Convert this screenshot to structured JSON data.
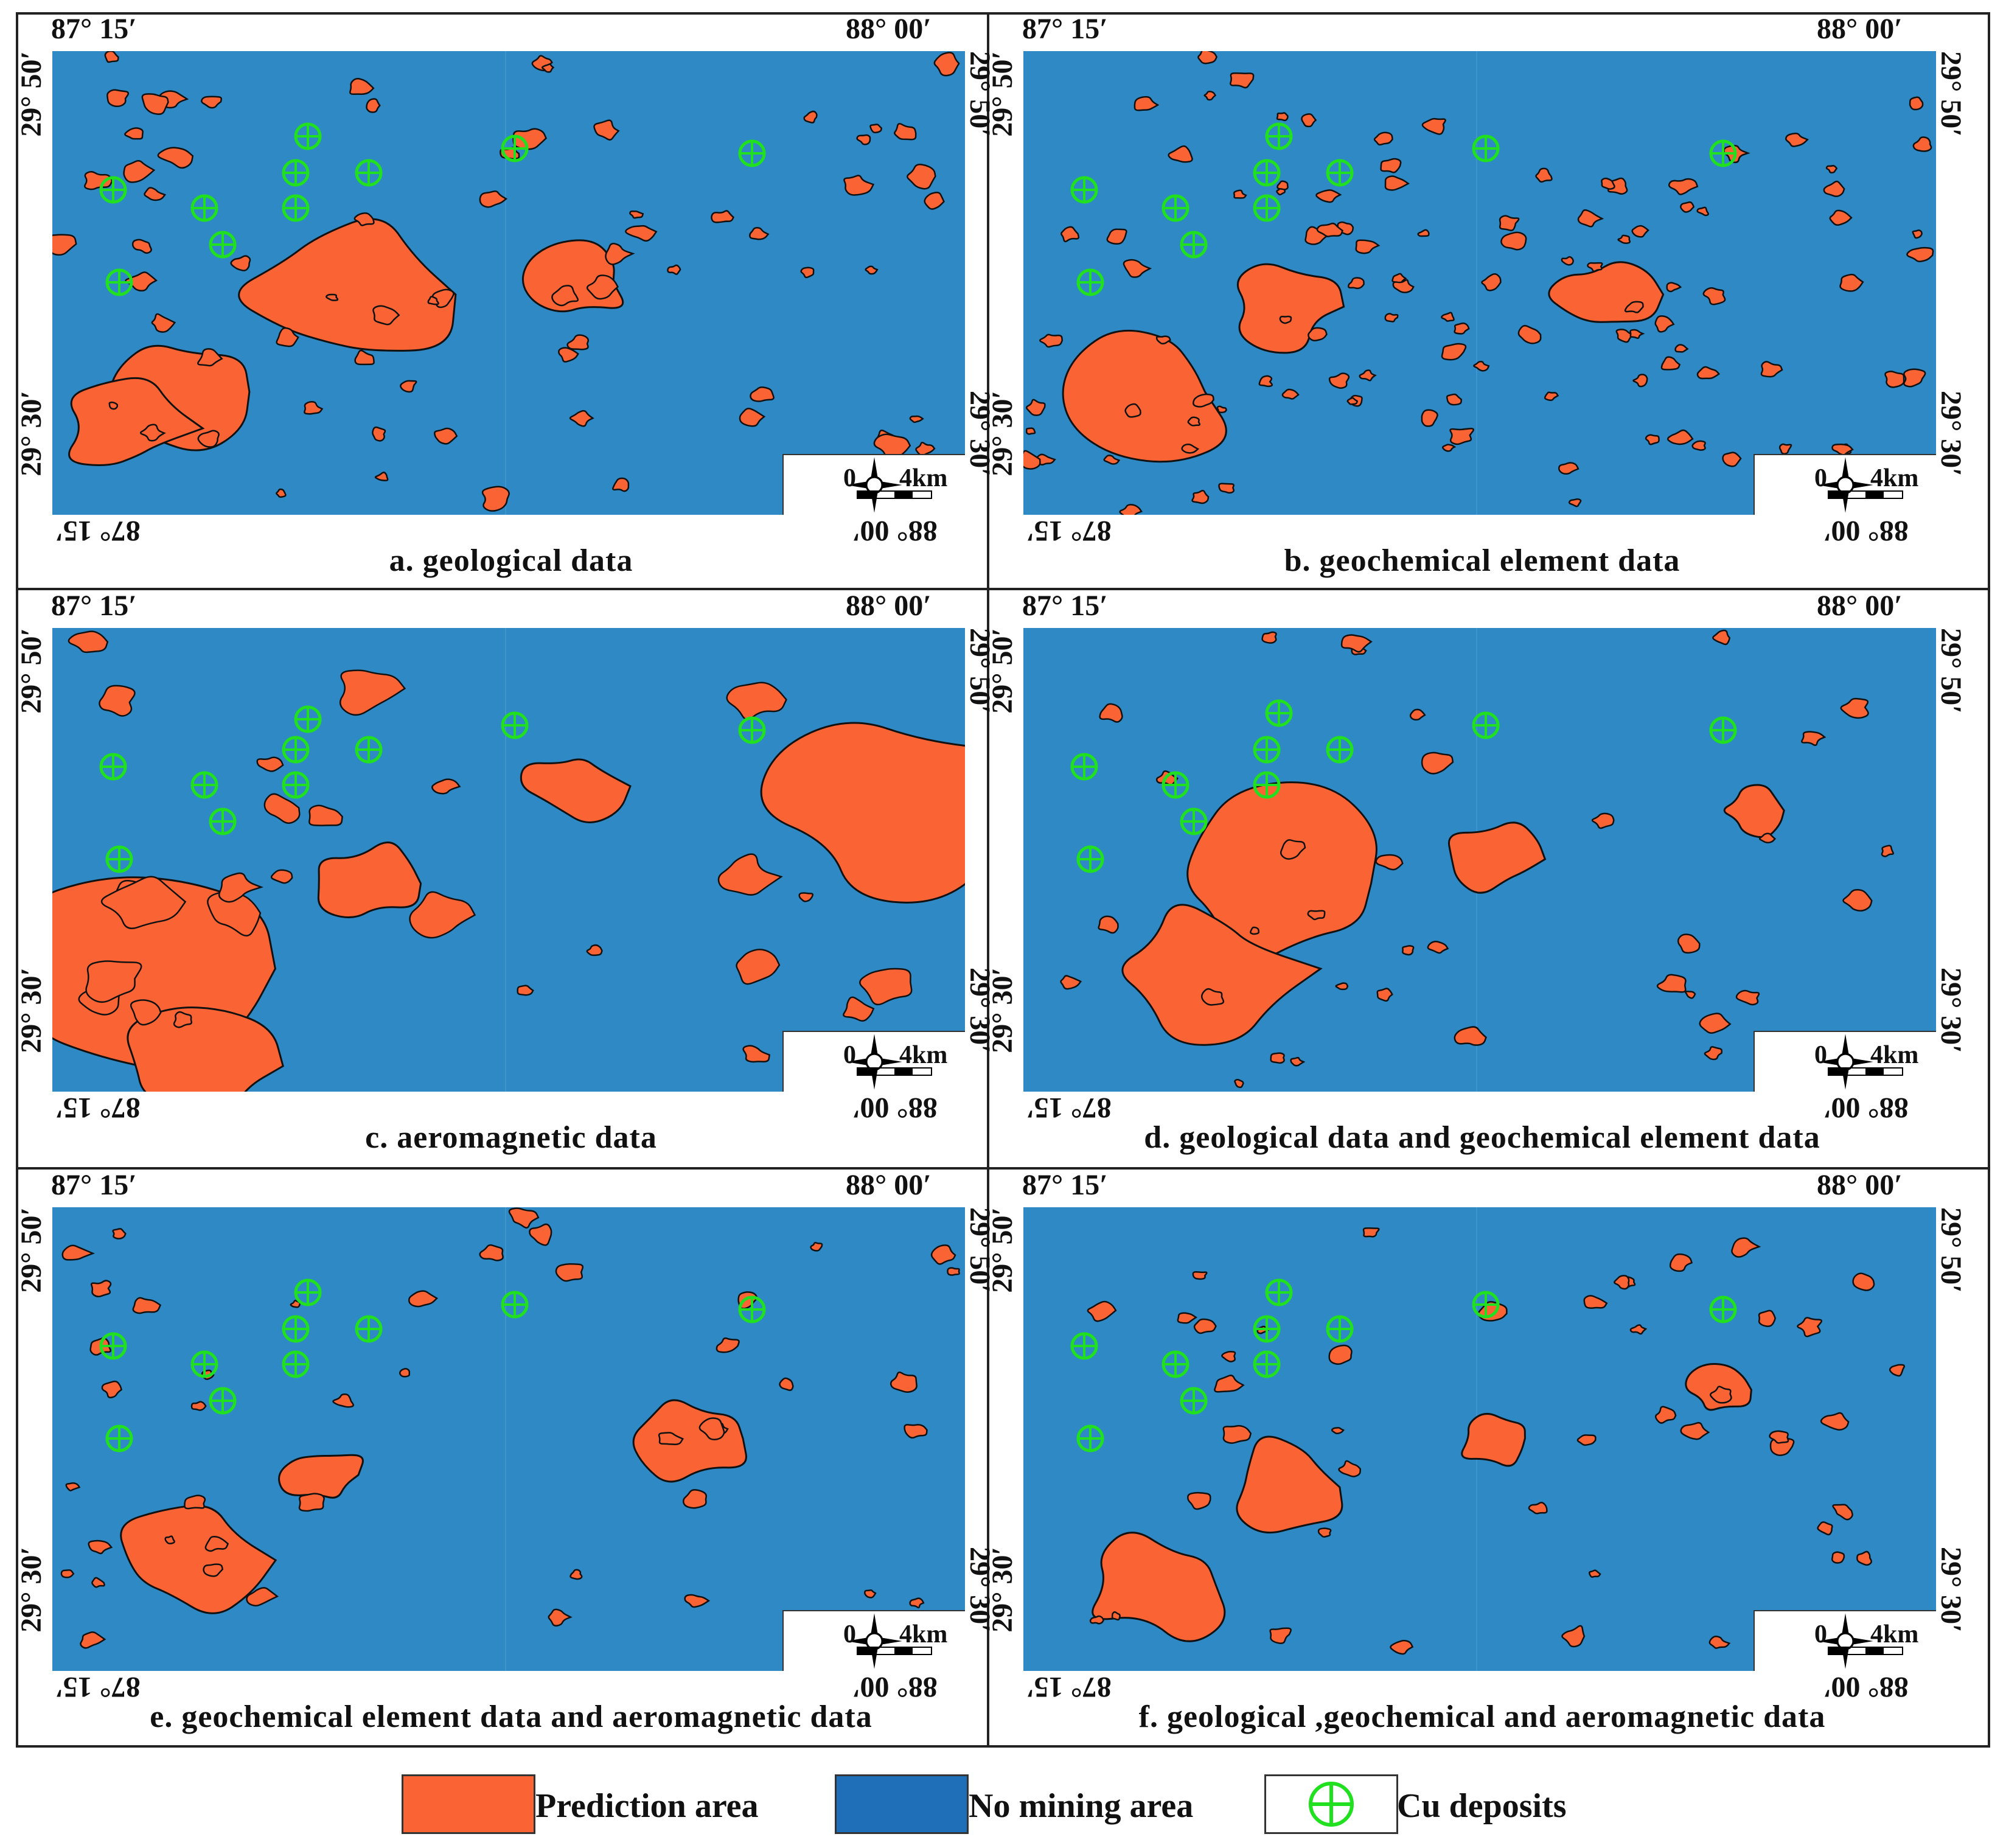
{
  "colors": {
    "prediction_area": "#fa6435",
    "no_mining_area": "#2f89c4",
    "legend_no_mining": "#1f6fb8",
    "cu_deposit": "#20e020",
    "outline": "#111111"
  },
  "ticks": {
    "top_left": "87° 15′",
    "top_right": "88° 00′",
    "left_top": "29° 50′",
    "left_bottom": "29° 30′",
    "right_top": "29° 50′",
    "right_bottom": "29° 30′",
    "bottom_left": "87° 15′",
    "bottom_right": "88° 00′"
  },
  "scale": {
    "zero": "0",
    "distance": "4km",
    "compass_icon": "north-arrow-compass-icon"
  },
  "panels": [
    {
      "id": "a",
      "caption": "a. geological data"
    },
    {
      "id": "b",
      "caption": "b. geochemical element data"
    },
    {
      "id": "c",
      "caption": "c. aeromagnetic data"
    },
    {
      "id": "d",
      "caption": "d. geological data and geochemical element data"
    },
    {
      "id": "e",
      "caption": "e. geochemical element data and  aeromagnetic data"
    },
    {
      "id": "f",
      "caption": "f. geological ,geochemical and aeromagnetic data"
    }
  ],
  "legend": {
    "prediction_area": "Prediction area",
    "no_mining_area": "No mining area",
    "cu_deposits": "Cu deposits",
    "deposit_icon": "circle-cross-icon"
  }
}
